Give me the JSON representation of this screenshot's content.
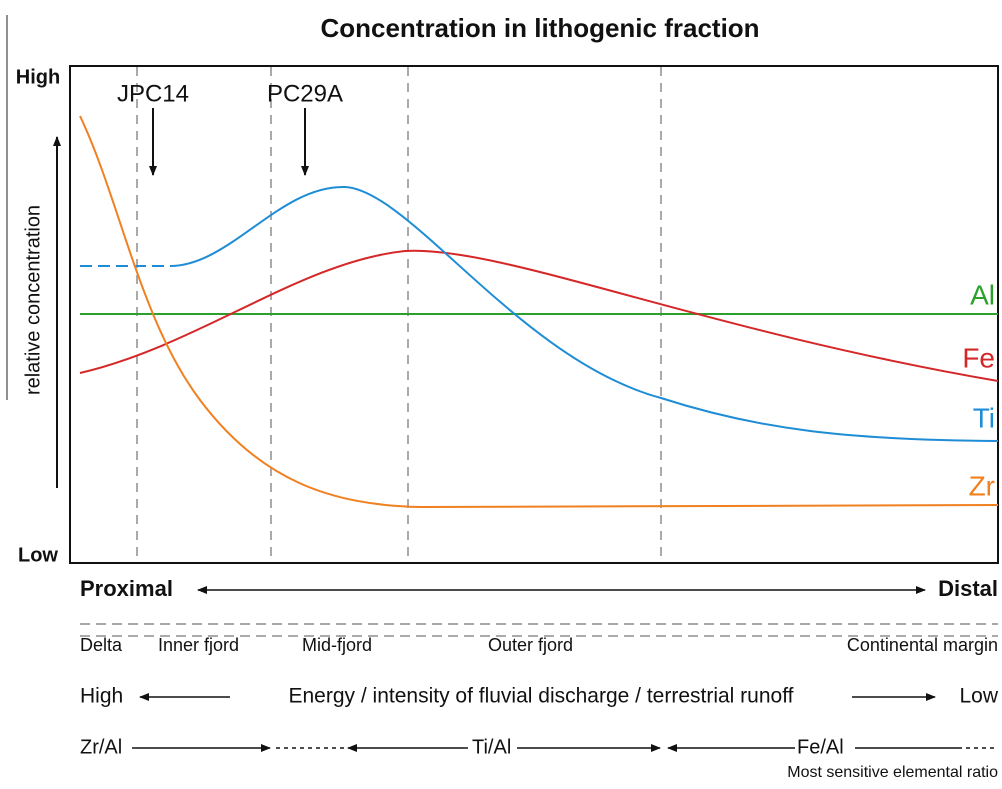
{
  "title": "Concentration in lithogenic fraction",
  "y_axis": {
    "label": "relative concentration",
    "high": "High",
    "low": "Low"
  },
  "cores": [
    "JPC14",
    "PC29A"
  ],
  "elements": [
    "Al",
    "Fe",
    "Ti",
    "Zr"
  ],
  "gradient": {
    "proximal": "Proximal",
    "distal": "Distal"
  },
  "zones": [
    "Delta",
    "Inner fjord",
    "Mid-fjord",
    "Outer fjord",
    "Continental margin"
  ],
  "energy": {
    "high": "High",
    "label": "Energy / intensity of fluvial discharge / terrestrial runoff",
    "low": "Low"
  },
  "ratios": [
    "Zr/Al",
    "Ti/Al",
    "Fe/Al"
  ],
  "ratio_caption": "Most sensitive elemental ratio"
}
